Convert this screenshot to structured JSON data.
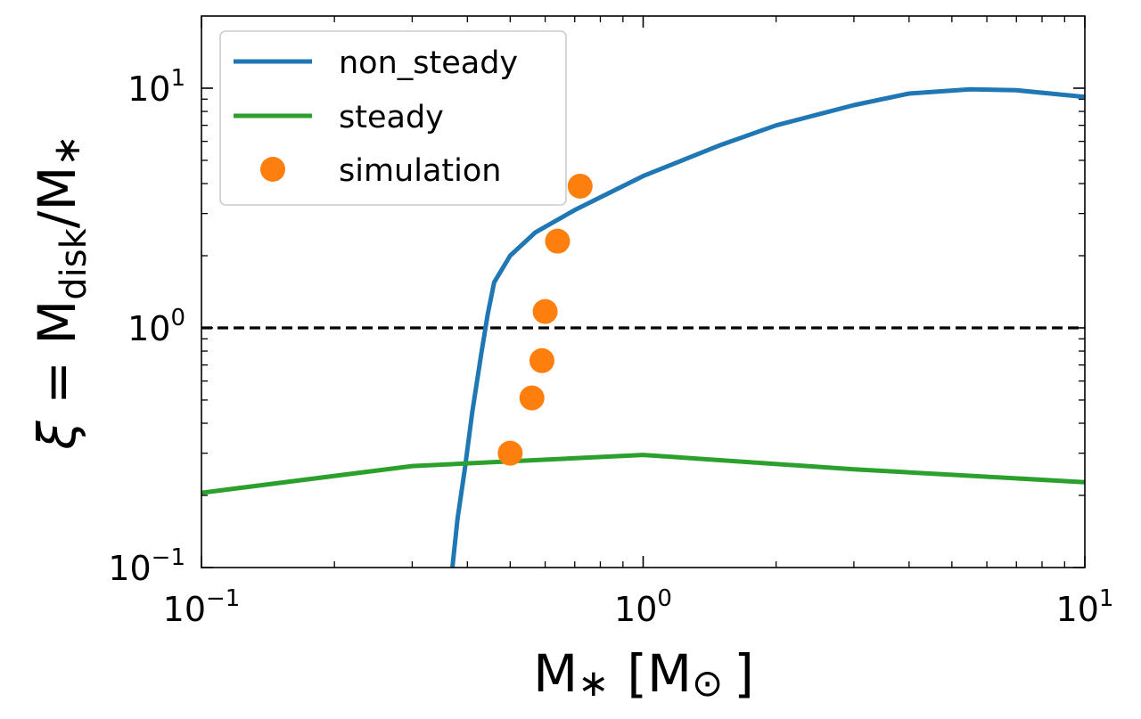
{
  "chart_data": {
    "type": "line",
    "x_scale": "log",
    "y_scale": "log",
    "xlim": [
      0.1,
      10
    ],
    "ylim": [
      0.1,
      20
    ],
    "xlabel": {
      "main": "M",
      "star": "∗",
      "bracket_open": "[M",
      "sun": "⊙",
      "bracket_close": "]"
    },
    "ylabel": {
      "xi": "ξ",
      "eq": " = M",
      "sub": "disk",
      "slash": "/M",
      "star": "∗"
    },
    "x_ticks": [
      {
        "value": 0.1,
        "base": "10",
        "exp": "−1"
      },
      {
        "value": 1,
        "base": "10",
        "exp": "0"
      },
      {
        "value": 10,
        "base": "10",
        "exp": "1"
      }
    ],
    "y_ticks": [
      {
        "value": 0.1,
        "base": "10",
        "exp": "−1"
      },
      {
        "value": 1,
        "base": "10",
        "exp": "0"
      },
      {
        "value": 10,
        "base": "10",
        "exp": "1"
      }
    ],
    "reference_line": {
      "y": 1,
      "style": "dashed",
      "color": "#000000"
    },
    "series": [
      {
        "name": "non_steady",
        "kind": "line",
        "color": "#1f77b4",
        "points": [
          [
            0.37,
            0.1
          ],
          [
            0.38,
            0.16
          ],
          [
            0.395,
            0.26
          ],
          [
            0.41,
            0.44
          ],
          [
            0.43,
            0.78
          ],
          [
            0.445,
            1.15
          ],
          [
            0.46,
            1.55
          ],
          [
            0.5,
            2.0
          ],
          [
            0.57,
            2.5
          ],
          [
            0.7,
            3.1
          ],
          [
            1.0,
            4.3
          ],
          [
            1.5,
            5.8
          ],
          [
            2.0,
            7.0
          ],
          [
            3.0,
            8.5
          ],
          [
            4.0,
            9.5
          ],
          [
            5.5,
            9.9
          ],
          [
            7.0,
            9.8
          ],
          [
            10.0,
            9.2
          ]
        ]
      },
      {
        "name": "steady",
        "kind": "line",
        "color": "#2ca02c",
        "points": [
          [
            0.1,
            0.205
          ],
          [
            0.3,
            0.265
          ],
          [
            1.0,
            0.295
          ],
          [
            3.0,
            0.257
          ],
          [
            10.0,
            0.227
          ]
        ]
      },
      {
        "name": "simulation",
        "kind": "scatter",
        "color": "#ff7f0e",
        "points": [
          [
            0.5,
            0.3
          ],
          [
            0.56,
            0.51
          ],
          [
            0.59,
            0.73
          ],
          [
            0.6,
            1.17
          ],
          [
            0.64,
            2.3
          ],
          [
            0.72,
            3.9
          ]
        ]
      }
    ],
    "legend": {
      "position": "top-left",
      "entries": [
        "non_steady",
        "steady",
        "simulation"
      ]
    },
    "grid": false
  }
}
